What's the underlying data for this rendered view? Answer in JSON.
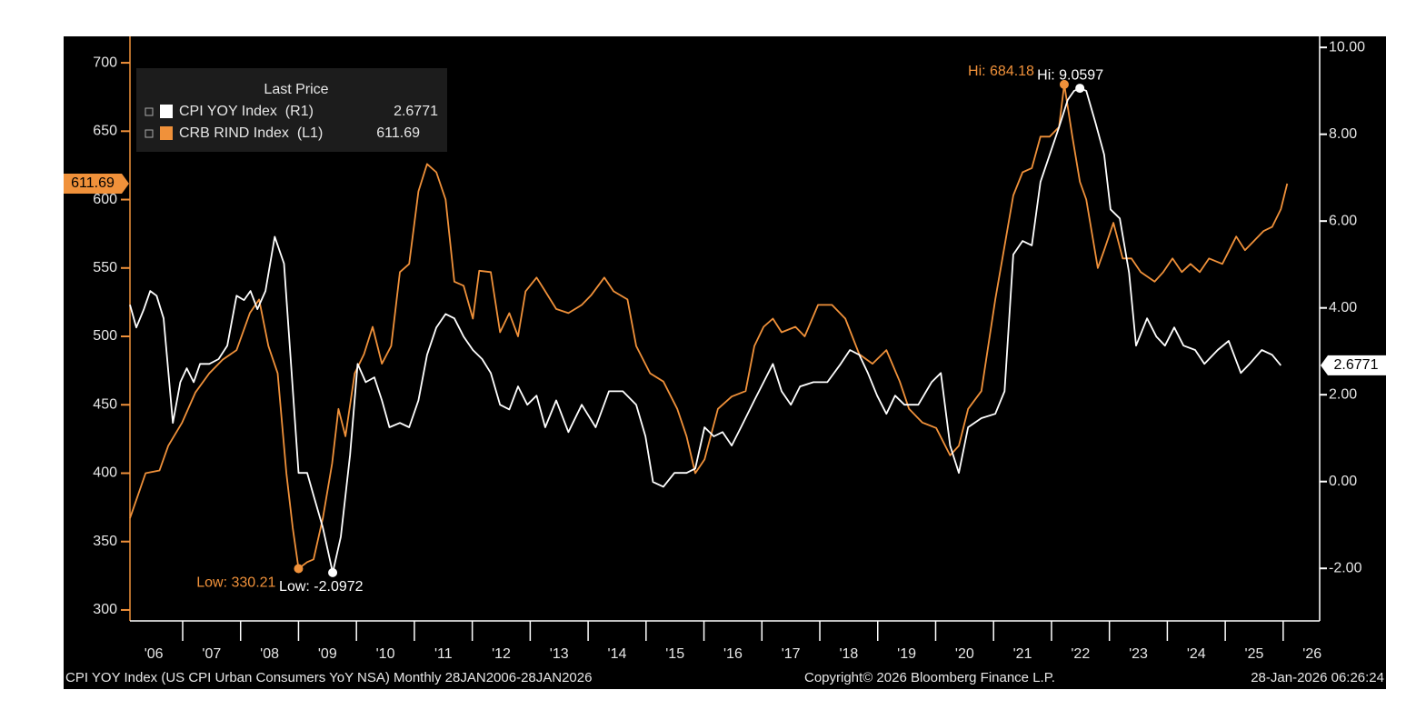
{
  "chart_data": {
    "type": "line",
    "xlim": [
      2006.09,
      2026.63
    ],
    "xticks": [
      {
        "value": 2006.5,
        "label": "'06"
      },
      {
        "value": 2007.5,
        "label": "'07"
      },
      {
        "value": 2008.5,
        "label": "'08"
      },
      {
        "value": 2009.5,
        "label": "'09"
      },
      {
        "value": 2010.5,
        "label": "'10"
      },
      {
        "value": 2011.5,
        "label": "'11"
      },
      {
        "value": 2012.5,
        "label": "'12"
      },
      {
        "value": 2013.5,
        "label": "'13"
      },
      {
        "value": 2014.5,
        "label": "'14"
      },
      {
        "value": 2015.5,
        "label": "'15"
      },
      {
        "value": 2016.5,
        "label": "'16"
      },
      {
        "value": 2017.5,
        "label": "'17"
      },
      {
        "value": 2018.5,
        "label": "'18"
      },
      {
        "value": 2019.5,
        "label": "'19"
      },
      {
        "value": 2020.5,
        "label": "'20"
      },
      {
        "value": 2021.5,
        "label": "'21"
      },
      {
        "value": 2022.5,
        "label": "'22"
      },
      {
        "value": 2023.5,
        "label": "'23"
      },
      {
        "value": 2024.5,
        "label": "'24"
      },
      {
        "value": 2025.5,
        "label": "'25"
      },
      {
        "value": 2026.5,
        "label": "'26"
      }
    ],
    "ylim": [
      292,
      716
    ],
    "yticks": [
      300,
      350,
      400,
      450,
      500,
      550,
      600,
      650,
      700
    ],
    "y2lim": [
      -3.21,
      10.15
    ],
    "y2ticks": [
      {
        "value": -2,
        "label": "-2.00"
      },
      {
        "value": 0,
        "label": "0.00"
      },
      {
        "value": 2,
        "label": "2.00"
      },
      {
        "value": 4,
        "label": "4.00"
      },
      {
        "value": 6,
        "label": "6.00"
      },
      {
        "value": 8,
        "label": "8.00"
      },
      {
        "value": 10,
        "label": "10.00"
      }
    ],
    "grid": false,
    "legend_title": "Last Price",
    "legend": "upper left",
    "series": [
      {
        "name": "CPI YOY Index  (R1)",
        "color": "#ffffff",
        "axis": "y2",
        "last_label": "2.6771",
        "hi_label": "Hi: 9.0597",
        "low_label": "Low: -2.0972",
        "x": [
          2006.09,
          2006.2,
          2006.33,
          2006.44,
          2006.55,
          2006.67,
          2006.83,
          2006.96,
          2007.07,
          2007.19,
          2007.3,
          2007.46,
          2007.62,
          2007.77,
          2007.93,
          2008.06,
          2008.17,
          2008.29,
          2008.43,
          2008.59,
          2008.75,
          2008.87,
          2009.0,
          2009.15,
          2009.26,
          2009.42,
          2009.59,
          2009.73,
          2009.89,
          2010.02,
          2010.16,
          2010.31,
          2010.44,
          2010.57,
          2010.75,
          2010.91,
          2011.07,
          2011.22,
          2011.38,
          2011.54,
          2011.69,
          2011.85,
          2012.01,
          2012.17,
          2012.32,
          2012.48,
          2012.64,
          2012.79,
          2012.95,
          2013.11,
          2013.26,
          2013.45,
          2013.66,
          2013.89,
          2014.13,
          2014.36,
          2014.6,
          2014.83,
          2014.99,
          2015.12,
          2015.3,
          2015.49,
          2015.7,
          2015.85,
          2016.01,
          2016.17,
          2016.32,
          2016.48,
          2016.64,
          2016.87,
          2017.03,
          2017.19,
          2017.34,
          2017.5,
          2017.66,
          2017.89,
          2018.13,
          2018.36,
          2018.52,
          2018.68,
          2018.83,
          2018.99,
          2019.15,
          2019.3,
          2019.46,
          2019.7,
          2019.93,
          2020.09,
          2020.25,
          2020.4,
          2020.56,
          2020.79,
          2021.03,
          2021.19,
          2021.34,
          2021.5,
          2021.66,
          2021.81,
          2021.97,
          2022.13,
          2022.28,
          2022.39,
          2022.49,
          2022.6,
          2022.76,
          2022.91,
          2023.02,
          2023.18,
          2023.34,
          2023.46,
          2023.65,
          2023.81,
          2023.96,
          2024.12,
          2024.28,
          2024.48,
          2024.64,
          2024.87,
          2025.06,
          2025.27,
          2025.42,
          2025.63,
          2025.81,
          2025.96
        ],
        "values": [
          4.07,
          3.55,
          3.97,
          4.39,
          4.28,
          3.76,
          1.35,
          2.29,
          2.61,
          2.29,
          2.71,
          2.71,
          2.82,
          3.13,
          4.28,
          4.18,
          4.39,
          3.97,
          4.39,
          5.64,
          5.02,
          2.71,
          0.2,
          0.2,
          -0.32,
          -1.06,
          -2.0972,
          -1.27,
          0.62,
          2.71,
          2.29,
          2.4,
          1.87,
          1.25,
          1.35,
          1.25,
          1.87,
          2.92,
          3.55,
          3.86,
          3.76,
          3.34,
          3.03,
          2.82,
          2.5,
          1.77,
          1.66,
          2.19,
          1.77,
          1.98,
          1.25,
          1.87,
          1.14,
          1.77,
          1.25,
          2.08,
          2.08,
          1.77,
          1.04,
          -0.01,
          -0.12,
          0.2,
          0.2,
          0.3,
          1.25,
          1.04,
          1.14,
          0.83,
          1.25,
          1.87,
          2.29,
          2.71,
          2.08,
          1.77,
          2.19,
          2.29,
          2.29,
          2.71,
          3.03,
          2.92,
          2.5,
          1.98,
          1.56,
          1.98,
          1.77,
          1.77,
          2.29,
          2.5,
          0.83,
          0.2,
          1.25,
          1.46,
          1.56,
          2.08,
          5.23,
          5.54,
          5.44,
          6.9,
          7.53,
          8.16,
          8.79,
          9.0,
          9.0597,
          9.0,
          8.26,
          7.53,
          6.27,
          6.06,
          4.81,
          3.13,
          3.76,
          3.34,
          3.13,
          3.55,
          3.13,
          3.03,
          2.71,
          3.03,
          3.24,
          2.5,
          2.71,
          3.03,
          2.92,
          2.6771
        ]
      },
      {
        "name": "CRB RIND Index  (L1)",
        "color": "#f0913a",
        "axis": "y",
        "last_label": "611.69",
        "hi_label": "Hi: 684.18",
        "low_label": "Low: 330.21",
        "x": [
          2006.09,
          2006.36,
          2006.6,
          2006.75,
          2006.99,
          2007.22,
          2007.46,
          2007.69,
          2007.93,
          2008.16,
          2008.32,
          2008.48,
          2008.64,
          2008.79,
          2008.9,
          2009.0,
          2009.15,
          2009.26,
          2009.42,
          2009.58,
          2009.69,
          2009.81,
          2009.97,
          2010.13,
          2010.28,
          2010.44,
          2010.6,
          2010.75,
          2010.91,
          2011.07,
          2011.22,
          2011.38,
          2011.54,
          2011.69,
          2011.85,
          2012.01,
          2012.12,
          2012.32,
          2012.48,
          2012.64,
          2012.79,
          2012.92,
          2013.11,
          2013.26,
          2013.45,
          2013.66,
          2013.89,
          2014.05,
          2014.28,
          2014.44,
          2014.68,
          2014.83,
          2015.07,
          2015.3,
          2015.54,
          2015.7,
          2015.85,
          2016.01,
          2016.24,
          2016.48,
          2016.72,
          2016.87,
          2017.03,
          2017.19,
          2017.34,
          2017.58,
          2017.74,
          2017.97,
          2018.21,
          2018.44,
          2018.68,
          2018.91,
          2019.15,
          2019.38,
          2019.54,
          2019.77,
          2020.01,
          2020.25,
          2020.4,
          2020.56,
          2020.79,
          2021.03,
          2021.19,
          2021.34,
          2021.5,
          2021.66,
          2021.81,
          2021.97,
          2022.13,
          2022.22,
          2022.36,
          2022.49,
          2022.6,
          2022.8,
          2022.91,
          2023.07,
          2023.23,
          2023.38,
          2023.54,
          2023.78,
          2023.93,
          2024.09,
          2024.25,
          2024.4,
          2024.56,
          2024.72,
          2024.95,
          2025.19,
          2025.34,
          2025.5,
          2025.66,
          2025.81,
          2025.96,
          2026.07
        ],
        "values": [
          367,
          400,
          402,
          420,
          437,
          459,
          473,
          483,
          490,
          517,
          527,
          493,
          473,
          400,
          360,
          330.21,
          335,
          337,
          367,
          407,
          447,
          427,
          473,
          487,
          507,
          480,
          493,
          547,
          553,
          606,
          626,
          620,
          600,
          540,
          537,
          513,
          548,
          547,
          503,
          517,
          500,
          533,
          543,
          533,
          520,
          517,
          523,
          530,
          543,
          533,
          527,
          493,
          473,
          467,
          447,
          427,
          400,
          410,
          447,
          456,
          460,
          493,
          507,
          513,
          503,
          507,
          500,
          523,
          523,
          513,
          487,
          480,
          490,
          467,
          447,
          437,
          433,
          413,
          420,
          447,
          460,
          527,
          566,
          603,
          620,
          623,
          646,
          646,
          653,
          684.18,
          646,
          613,
          600,
          550,
          563,
          583,
          557,
          557,
          547,
          540,
          547,
          557,
          547,
          553,
          547,
          557,
          553,
          573,
          563,
          570,
          577,
          580,
          593,
          611.69
        ]
      }
    ],
    "source": "CPI YOY Index (US CPI Urban Consumers YoY NSA) Monthly 28JAN2006-28JAN2026",
    "copyright": "Copyright© 2026 Bloomberg Finance L.P.",
    "timestamp": "28-Jan-2026 06:26:24"
  }
}
